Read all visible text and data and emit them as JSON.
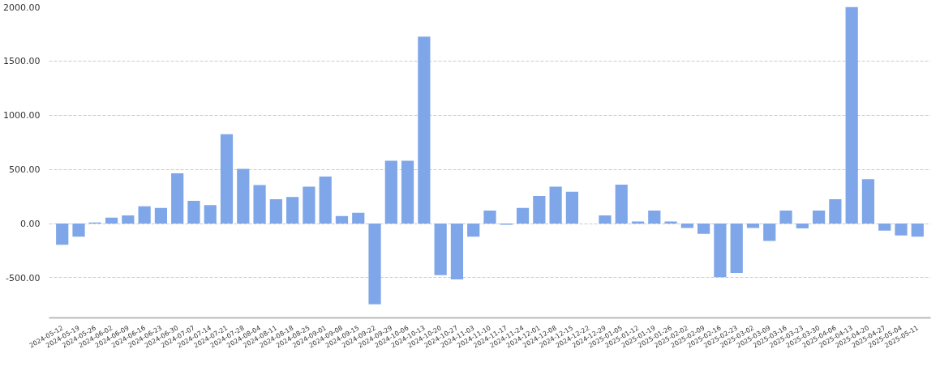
{
  "chart_data": {
    "type": "bar",
    "categories": [
      "2024-05-12",
      "2024-05-19",
      "2024-05-26",
      "2024-06-02",
      "2024-06-09",
      "2024-06-16",
      "2024-06-23",
      "2024-06-30",
      "2024-07-07",
      "2024-07-14",
      "2024-07-21",
      "2024-07-28",
      "2024-08-04",
      "2024-08-11",
      "2024-08-18",
      "2024-08-25",
      "2024-09-01",
      "2024-09-08",
      "2024-09-15",
      "2024-09-22",
      "2024-09-29",
      "2024-10-06",
      "2024-10-13",
      "2024-10-20",
      "2024-10-27",
      "2024-11-03",
      "2024-11-10",
      "2024-11-17",
      "2024-11-24",
      "2024-12-01",
      "2024-12-08",
      "2024-12-15",
      "2024-12-22",
      "2024-12-29",
      "2025-01-05",
      "2025-01-12",
      "2025-01-19",
      "2025-01-26",
      "2025-02-02",
      "2025-02-09",
      "2025-02-16",
      "2025-02-23",
      "2025-03-02",
      "2025-03-09",
      "2025-03-16",
      "2025-03-23",
      "2025-03-30",
      "2025-04-06",
      "2025-04-13",
      "2025-04-20",
      "2025-04-27",
      "2025-05-04",
      "2025-05-11"
    ],
    "values": [
      -195,
      -120,
      10,
      55,
      75,
      160,
      145,
      465,
      210,
      170,
      825,
      505,
      355,
      225,
      245,
      340,
      435,
      70,
      100,
      -745,
      580,
      580,
      1725,
      -475,
      -515,
      -120,
      120,
      -10,
      145,
      255,
      340,
      295,
      null,
      75,
      360,
      20,
      120,
      20,
      -40,
      -95,
      -495,
      -455,
      -40,
      -160,
      120,
      -45,
      120,
      225,
      2000,
      410,
      -65,
      -110,
      -120
    ],
    "color": "#7ea6e8",
    "ylim": [
      -870,
      2000
    ],
    "yticks": [
      {
        "value": -500,
        "label": "-500.00"
      },
      {
        "value": 0,
        "label": "0.00"
      },
      {
        "value": 500,
        "label": "500.00"
      },
      {
        "value": 1000,
        "label": "1000.00"
      },
      {
        "value": 1500,
        "label": "1500.00"
      },
      {
        "value": 2000,
        "label": "2000.00"
      }
    ],
    "grid": "y"
  }
}
